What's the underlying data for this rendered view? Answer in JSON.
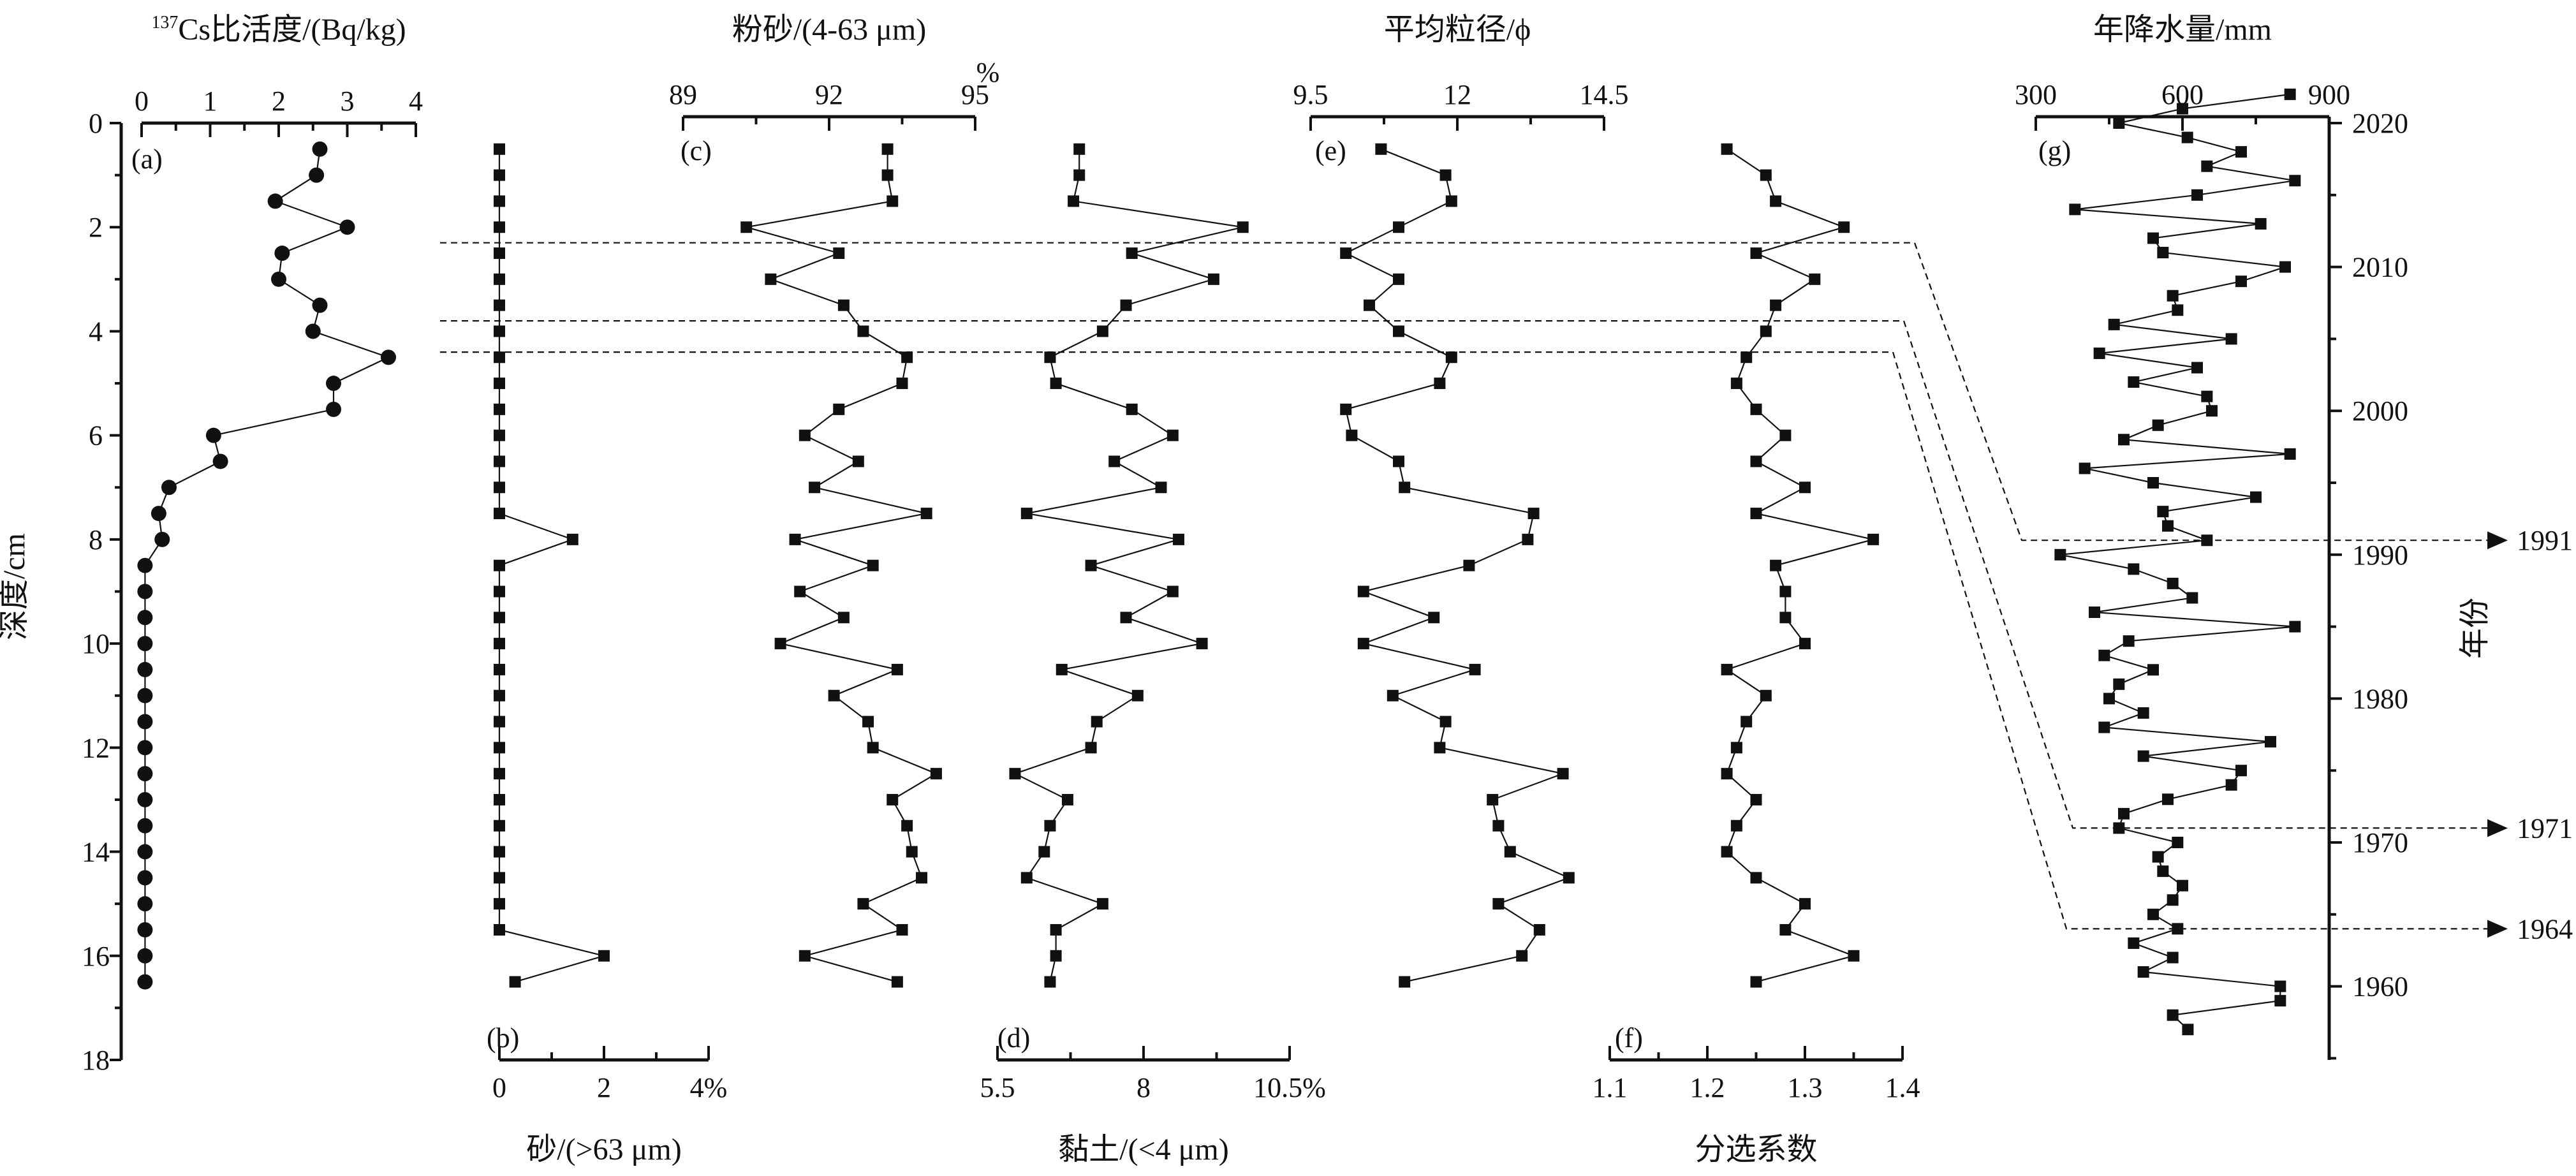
{
  "chart_data": [
    {
      "id": "a",
      "type": "line",
      "panel_label": "(a)",
      "xlabel_sup": "137",
      "xlabel": "Cs比活度/(Bq/kg)",
      "xlim": [
        0,
        4
      ],
      "xticks": [
        0,
        1,
        2,
        3,
        4
      ],
      "axis_position": "top",
      "ylabel": "深度/cm",
      "ylim": [
        0,
        18
      ],
      "yticks": [
        0,
        2,
        4,
        6,
        8,
        10,
        12,
        14,
        16,
        18
      ],
      "marker": "circle",
      "x": [
        2.6,
        2.55,
        1.95,
        3.0,
        2.05,
        2.0,
        2.6,
        2.5,
        3.6,
        2.8,
        2.8,
        1.05,
        1.15,
        0.4,
        0.25,
        0.3,
        0.05,
        0.05,
        0.05,
        0.05,
        0.05,
        0.05,
        0.05,
        0.05,
        0.05,
        0.05,
        0.05,
        0.05,
        0.05,
        0.05,
        0.05,
        0.05,
        0.05
      ],
      "y": [
        0.5,
        1.0,
        1.5,
        2.0,
        2.5,
        3.0,
        3.5,
        4.0,
        4.5,
        5.0,
        5.5,
        6.0,
        6.5,
        7.0,
        7.5,
        8.0,
        8.5,
        9.0,
        9.5,
        10.0,
        10.5,
        11.0,
        11.5,
        12.0,
        12.5,
        13.0,
        13.5,
        14.0,
        14.5,
        15.0,
        15.5,
        16.0,
        16.5
      ]
    },
    {
      "id": "b",
      "type": "line",
      "panel_label": "(b)",
      "xlabel": "砂/(>63 μm)",
      "xlim": [
        0,
        4
      ],
      "xticks": [
        0,
        2,
        4
      ],
      "tick_suffix": "%",
      "axis_position": "bottom",
      "ylim": [
        0,
        18
      ],
      "marker": "square",
      "x": [
        0,
        0,
        0,
        0,
        0,
        0,
        0,
        0,
        0,
        0,
        0,
        0,
        0,
        0,
        0,
        1.4,
        0,
        0,
        0,
        0,
        0,
        0,
        0,
        0,
        0,
        0,
        0,
        0,
        0,
        0,
        0,
        2.0,
        0.3
      ],
      "y": [
        0.5,
        1.0,
        1.5,
        2.0,
        2.5,
        3.0,
        3.5,
        4.0,
        4.5,
        5.0,
        5.5,
        6.0,
        6.5,
        7.0,
        7.5,
        8.0,
        8.5,
        9.0,
        9.5,
        10.0,
        10.5,
        11.0,
        11.5,
        12.0,
        12.5,
        13.0,
        13.5,
        14.0,
        14.5,
        15.0,
        15.5,
        16.0,
        16.5
      ]
    },
    {
      "id": "c",
      "type": "line",
      "panel_label": "(c)",
      "xlabel": "粉砂/(4-63 μm)",
      "xlim": [
        89,
        95
      ],
      "xticks": [
        89,
        92,
        95
      ],
      "axis_label_suffix": "%",
      "axis_position": "top",
      "ylim": [
        0,
        18
      ],
      "marker": "square",
      "x": [
        93.2,
        93.2,
        93.3,
        90.3,
        92.2,
        90.8,
        92.3,
        92.7,
        93.6,
        93.5,
        92.2,
        91.5,
        92.6,
        91.7,
        94.0,
        91.3,
        92.9,
        91.4,
        92.3,
        91.0,
        93.4,
        92.1,
        92.8,
        92.9,
        94.2,
        93.3,
        93.6,
        93.7,
        93.9,
        92.7,
        93.5,
        91.5,
        93.4
      ],
      "y": [
        0.5,
        1.0,
        1.5,
        2.0,
        2.5,
        3.0,
        3.5,
        4.0,
        4.5,
        5.0,
        5.5,
        6.0,
        6.5,
        7.0,
        7.5,
        8.0,
        8.5,
        9.0,
        9.5,
        10.0,
        10.5,
        11.0,
        11.5,
        12.0,
        12.5,
        13.0,
        13.5,
        14.0,
        14.5,
        15.0,
        15.5,
        16.0,
        16.5
      ]
    },
    {
      "id": "d",
      "type": "line",
      "panel_label": "(d)",
      "xlabel": "黏土/(<4 μm)",
      "xlim": [
        5.5,
        10.5
      ],
      "xticks": [
        5.5,
        8.0,
        10.5
      ],
      "tick_suffix": "%",
      "axis_position": "bottom",
      "ylim": [
        0,
        18
      ],
      "marker": "square",
      "x": [
        6.9,
        6.9,
        6.8,
        9.7,
        7.8,
        9.2,
        7.7,
        7.3,
        6.4,
        6.5,
        7.8,
        8.5,
        7.5,
        8.3,
        6.0,
        8.6,
        7.1,
        8.5,
        7.7,
        9.0,
        6.6,
        7.9,
        7.2,
        7.1,
        5.8,
        6.7,
        6.4,
        6.3,
        6.0,
        7.3,
        6.5,
        6.5,
        6.4
      ],
      "y": [
        0.5,
        1.0,
        1.5,
        2.0,
        2.5,
        3.0,
        3.5,
        4.0,
        4.5,
        5.0,
        5.5,
        6.0,
        6.5,
        7.0,
        7.5,
        8.0,
        8.5,
        9.0,
        9.5,
        10.0,
        10.5,
        11.0,
        11.5,
        12.0,
        12.5,
        13.0,
        13.5,
        14.0,
        14.5,
        15.0,
        15.5,
        16.0,
        16.5
      ]
    },
    {
      "id": "e",
      "type": "line",
      "panel_label": "(e)",
      "xlabel": "平均粒径/ϕ",
      "xlim": [
        9.5,
        14.5
      ],
      "xticks": [
        9.5,
        12.0,
        14.5
      ],
      "axis_position": "top",
      "ylim": [
        0,
        18
      ],
      "marker": "square",
      "x": [
        10.7,
        11.8,
        11.9,
        11.0,
        10.1,
        11.0,
        10.5,
        11.0,
        11.9,
        11.7,
        10.1,
        10.2,
        11.0,
        11.1,
        13.3,
        13.2,
        12.2,
        10.4,
        11.6,
        10.4,
        12.3,
        10.9,
        11.8,
        11.7,
        13.8,
        12.6,
        12.7,
        12.9,
        13.9,
        12.7,
        13.4,
        13.1,
        11.1
      ],
      "y": [
        0.5,
        1.0,
        1.5,
        2.0,
        2.5,
        3.0,
        3.5,
        4.0,
        4.5,
        5.0,
        5.5,
        6.0,
        6.5,
        7.0,
        7.5,
        8.0,
        8.5,
        9.0,
        9.5,
        10.0,
        10.5,
        11.0,
        11.5,
        12.0,
        12.5,
        13.0,
        13.5,
        14.0,
        14.5,
        15.0,
        15.5,
        16.0,
        16.5
      ]
    },
    {
      "id": "f",
      "type": "line",
      "panel_label": "(f)",
      "xlabel": "分选系数",
      "xlim": [
        1.1,
        1.4
      ],
      "xticks": [
        1.1,
        1.2,
        1.3,
        1.4
      ],
      "axis_position": "bottom",
      "ylim": [
        0,
        18
      ],
      "marker": "square",
      "x": [
        1.22,
        1.26,
        1.27,
        1.34,
        1.25,
        1.31,
        1.27,
        1.26,
        1.24,
        1.23,
        1.25,
        1.28,
        1.25,
        1.3,
        1.25,
        1.37,
        1.27,
        1.28,
        1.28,
        1.3,
        1.22,
        1.26,
        1.24,
        1.23,
        1.22,
        1.25,
        1.23,
        1.22,
        1.25,
        1.3,
        1.28,
        1.35,
        1.25
      ],
      "y": [
        0.5,
        1.0,
        1.5,
        2.0,
        2.5,
        3.0,
        3.5,
        4.0,
        4.5,
        5.0,
        5.5,
        6.0,
        6.5,
        7.0,
        7.5,
        8.0,
        8.5,
        9.0,
        9.5,
        10.0,
        10.5,
        11.0,
        11.5,
        12.0,
        12.5,
        13.0,
        13.5,
        14.0,
        14.5,
        15.0,
        15.5,
        16.0,
        16.5
      ]
    },
    {
      "id": "g",
      "type": "line",
      "panel_label": "(g)",
      "xlabel": "年降水量/mm",
      "xlim": [
        300,
        900
      ],
      "xticks": [
        300,
        600,
        900
      ],
      "axis_position": "top",
      "ylabel": "年份",
      "ylim": [
        2021,
        1955
      ],
      "yticks": [
        2020,
        2010,
        2000,
        1990,
        1980,
        1970,
        1960
      ],
      "marker": "square",
      "x": [
        611,
        580,
        800,
        800,
        520,
        580,
        500,
        590,
        540,
        580,
        600,
        560,
        550,
        590,
        470,
        480,
        570,
        700,
        720,
        520,
        780,
        440,
        520,
        450,
        470,
        540,
        440,
        490,
        830,
        420,
        620,
        580,
        500,
        350,
        650,
        570,
        560,
        750,
        540,
        400,
        820,
        480,
        550,
        660,
        650,
        500,
        630,
        430,
        700,
        460,
        590,
        580,
        720,
        810,
        560,
        540,
        760,
        380,
        630,
        830,
        650,
        720,
        610,
        470,
        600,
        820
      ],
      "y": [
        1957,
        1958,
        1959,
        1960,
        1961,
        1962,
        1963,
        1964,
        1965,
        1966,
        1967,
        1968,
        1969,
        1970,
        1971,
        1972,
        1973,
        1974,
        1975,
        1976,
        1977,
        1978,
        1979,
        1980,
        1981,
        1982,
        1983,
        1984,
        1985,
        1986,
        1987,
        1988,
        1989,
        1990,
        1991,
        1992,
        1993,
        1994,
        1995,
        1996,
        1997,
        1998,
        1999,
        2000,
        2001,
        2002,
        2003,
        2004,
        2005,
        2006,
        2007,
        2008,
        2009,
        2010,
        2011,
        2012,
        2013,
        2014,
        2015,
        2016,
        2017,
        2018,
        2019,
        2020,
        2021,
        2022
      ]
    }
  ],
  "correlations": [
    {
      "depth": 2.3,
      "year": 1991,
      "label": "1991"
    },
    {
      "depth": 3.8,
      "year": 1971,
      "label": "1971"
    },
    {
      "depth": 4.4,
      "year": 1964,
      "label": "1964"
    }
  ]
}
